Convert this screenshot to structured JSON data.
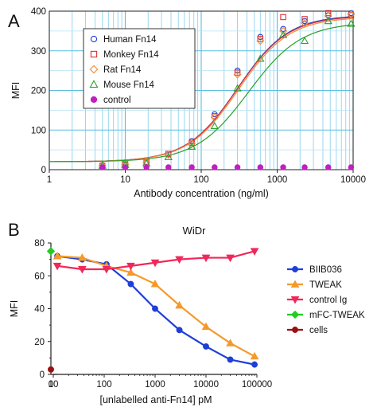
{
  "chart_data": [
    {
      "panel": "A",
      "type": "scatter",
      "title": "",
      "xlabel": "Antibody concentration (ng/ml)",
      "ylabel": "MFI",
      "xscale": "log",
      "xlim": [
        1,
        10000
      ],
      "ylim": [
        0,
        400
      ],
      "xticks": [
        1,
        10,
        100,
        1000,
        10000
      ],
      "xtick_labels": [
        "1",
        "10",
        "100",
        "1000",
        "10000"
      ],
      "yticks": [
        0,
        100,
        200,
        300,
        400
      ],
      "ytick_labels": [
        "0",
        "100",
        "200",
        "300",
        "400"
      ],
      "grid": true,
      "legend_position": "top-left",
      "series": [
        {
          "name": "Human Fn14",
          "marker": "circle",
          "color": "#1f3fd8",
          "x": [
            5,
            10,
            19,
            37,
            75,
            150,
            300,
            600,
            1200,
            2300,
            4700,
            9400
          ],
          "y": [
            12,
            14,
            18,
            38,
            72,
            140,
            250,
            335,
            355,
            375,
            390,
            395
          ],
          "fit": {
            "bottom": 20,
            "top": 390,
            "ec50": 300,
            "hill": 1.3
          }
        },
        {
          "name": "Monkey Fn14",
          "marker": "square",
          "color": "#e03030",
          "x": [
            5,
            10,
            19,
            37,
            75,
            150,
            300,
            600,
            1200,
            2300,
            4700,
            9400
          ],
          "y": [
            10,
            14,
            20,
            40,
            68,
            135,
            245,
            330,
            385,
            380,
            395,
            390
          ],
          "fit": {
            "bottom": 20,
            "top": 388,
            "ec50": 300,
            "hill": 1.3
          }
        },
        {
          "name": "Rat Fn14",
          "marker": "diamond",
          "color": "#f08a3a",
          "x": [
            5,
            10,
            19,
            37,
            75,
            150,
            300,
            600,
            1200,
            2300,
            4700,
            9400
          ],
          "y": [
            11,
            13,
            19,
            38,
            66,
            132,
            240,
            325,
            350,
            370,
            388,
            392
          ],
          "fit": {
            "bottom": 20,
            "top": 385,
            "ec50": 310,
            "hill": 1.3
          }
        },
        {
          "name": "Mouse Fn14",
          "marker": "triangle",
          "color": "#2aa02a",
          "x": [
            5,
            10,
            19,
            37,
            75,
            150,
            300,
            600,
            1200,
            2300,
            4700,
            9400
          ],
          "y": [
            10,
            12,
            16,
            32,
            58,
            110,
            205,
            280,
            340,
            325,
            375,
            368
          ],
          "fit": {
            "bottom": 20,
            "top": 372,
            "ec50": 420,
            "hill": 1.25
          }
        },
        {
          "name": "control",
          "marker": "dot",
          "color": "#c020c0",
          "x": [
            5,
            10,
            19,
            37,
            75,
            150,
            300,
            600,
            1200,
            2300,
            4700,
            9400
          ],
          "y": [
            6,
            6,
            6,
            6,
            6,
            6,
            6,
            6,
            6,
            6,
            6,
            6
          ]
        }
      ]
    },
    {
      "panel": "B",
      "type": "line",
      "title": "WiDr",
      "xlabel": "[unlabelled anti-Fn14] pM",
      "ylabel": "MFI",
      "xscale": "log",
      "xlim": [
        10,
        100000
      ],
      "ylim": [
        0,
        80
      ],
      "xticks": [
        10,
        100,
        1000,
        10000,
        100000
      ],
      "xtick_labels": [
        "10",
        "100",
        "1000",
        "10000",
        "100000"
      ],
      "x_zero_label": "0",
      "yticks": [
        0,
        20,
        40,
        60,
        80
      ],
      "ytick_labels": [
        "0",
        "20",
        "40",
        "60",
        "80"
      ],
      "grid": false,
      "legend_position": "right",
      "series": [
        {
          "name": "BIIB036",
          "marker": "circle",
          "color": "#1f3fd8",
          "x": [
            12,
            37,
            111,
            333,
            1000,
            3000,
            10000,
            30000,
            90000
          ],
          "y": [
            72,
            70,
            67,
            55,
            40,
            27,
            17,
            9,
            6
          ]
        },
        {
          "name": "TWEAK",
          "marker": "triangle",
          "color": "#f59a2a",
          "x": [
            12,
            37,
            111,
            333,
            1000,
            3000,
            10000,
            30000,
            90000
          ],
          "y": [
            72,
            71,
            66,
            62,
            55,
            42,
            29,
            19,
            11
          ]
        },
        {
          "name": "control Ig",
          "marker": "triangle-down",
          "color": "#f0285a",
          "x": [
            12,
            37,
            111,
            333,
            1000,
            3000,
            10000,
            30000,
            90000
          ],
          "y": [
            66,
            64,
            64,
            66,
            68,
            70,
            71,
            71,
            75
          ]
        },
        {
          "name": "mFC-TWEAK",
          "marker": "diamond",
          "color": "#22cc22",
          "x": [
            0
          ],
          "y": [
            75
          ]
        },
        {
          "name": "cells",
          "marker": "dot",
          "color": "#9b1010",
          "x": [
            0
          ],
          "y": [
            3
          ]
        }
      ]
    }
  ],
  "panel_labels": [
    "A",
    "B"
  ]
}
